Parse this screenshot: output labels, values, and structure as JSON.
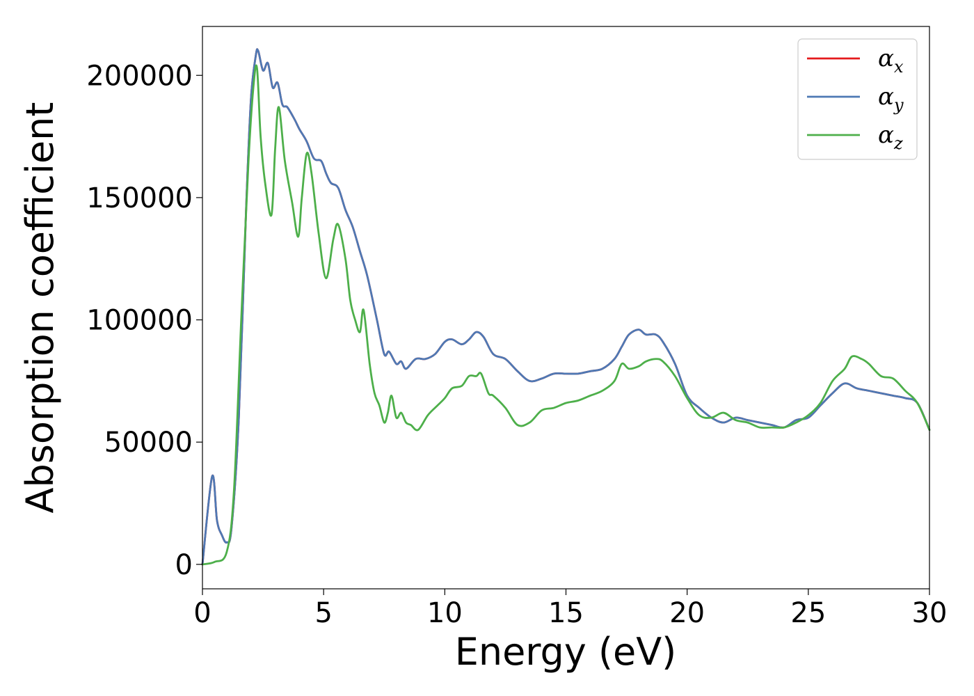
{
  "chart_data": {
    "type": "line",
    "title": "",
    "xlabel": "Energy (eV)",
    "ylabel": "Absorption coefficient",
    "xlim": [
      0,
      30
    ],
    "ylim": [
      -10000,
      220000
    ],
    "xticks": [
      0,
      5,
      10,
      15,
      20,
      25,
      30
    ],
    "yticks": [
      0,
      50000,
      100000,
      150000,
      200000
    ],
    "grid": false,
    "legend_position": "top-right",
    "series": [
      {
        "name_base": "α",
        "name_sub": "x",
        "color": "#e41a1c",
        "x": [
          0,
          0.4,
          0.6,
          0.8,
          1.0,
          1.2,
          1.5,
          1.8,
          2.0,
          2.2,
          2.3,
          2.5,
          2.7,
          2.9,
          3.1,
          3.3,
          3.5,
          3.8,
          4.0,
          4.3,
          4.6,
          4.9,
          5.1,
          5.3,
          5.6,
          5.9,
          6.2,
          6.5,
          6.8,
          7.2,
          7.5,
          7.7,
          8.0,
          8.2,
          8.4,
          8.8,
          9.2,
          9.6,
          10.0,
          10.3,
          10.7,
          11.0,
          11.3,
          11.6,
          12.0,
          12.5,
          13.0,
          13.5,
          14.0,
          14.5,
          15.0,
          15.5,
          16.0,
          16.5,
          17.0,
          17.3,
          17.6,
          18.0,
          18.3,
          18.7,
          19.0,
          19.5,
          20.0,
          20.5,
          21.0,
          21.5,
          22.0,
          22.5,
          23.0,
          23.5,
          24.0,
          24.5,
          25.0,
          25.5,
          26.0,
          26.5,
          27.0,
          27.5,
          28.0,
          28.5,
          29.0,
          29.5,
          30.0
        ],
        "y": [
          0,
          36000,
          18000,
          12000,
          9000,
          15000,
          60000,
          145000,
          190000,
          208000,
          210000,
          202000,
          205000,
          195000,
          197000,
          188000,
          187000,
          182000,
          178000,
          173000,
          166000,
          165000,
          160000,
          156000,
          154000,
          145000,
          138000,
          128000,
          118000,
          100000,
          86000,
          87000,
          82000,
          83000,
          80000,
          84000,
          84000,
          86000,
          91000,
          92000,
          90000,
          92000,
          95000,
          93000,
          86000,
          84000,
          79000,
          75000,
          76000,
          78000,
          78000,
          78000,
          79000,
          80000,
          84000,
          89000,
          94000,
          96000,
          94000,
          94000,
          91000,
          82000,
          69000,
          64000,
          60000,
          58000,
          60000,
          59000,
          58000,
          57000,
          56000,
          59000,
          60000,
          65000,
          70000,
          74000,
          72000,
          71000,
          70000,
          69000,
          68000,
          66000,
          55000
        ]
      },
      {
        "name_base": "α",
        "name_sub": "y",
        "color": "#4e79b4",
        "x": [
          0,
          0.4,
          0.6,
          0.8,
          1.0,
          1.2,
          1.5,
          1.8,
          2.0,
          2.2,
          2.3,
          2.5,
          2.7,
          2.9,
          3.1,
          3.3,
          3.5,
          3.8,
          4.0,
          4.3,
          4.6,
          4.9,
          5.1,
          5.3,
          5.6,
          5.9,
          6.2,
          6.5,
          6.8,
          7.2,
          7.5,
          7.7,
          8.0,
          8.2,
          8.4,
          8.8,
          9.2,
          9.6,
          10.0,
          10.3,
          10.7,
          11.0,
          11.3,
          11.6,
          12.0,
          12.5,
          13.0,
          13.5,
          14.0,
          14.5,
          15.0,
          15.5,
          16.0,
          16.5,
          17.0,
          17.3,
          17.6,
          18.0,
          18.3,
          18.7,
          19.0,
          19.5,
          20.0,
          20.5,
          21.0,
          21.5,
          22.0,
          22.5,
          23.0,
          23.5,
          24.0,
          24.5,
          25.0,
          25.5,
          26.0,
          26.5,
          27.0,
          27.5,
          28.0,
          28.5,
          29.0,
          29.5,
          30.0
        ],
        "y": [
          0,
          36000,
          18000,
          12000,
          9000,
          15000,
          60000,
          145000,
          190000,
          208000,
          210000,
          202000,
          205000,
          195000,
          197000,
          188000,
          187000,
          182000,
          178000,
          173000,
          166000,
          165000,
          160000,
          156000,
          154000,
          145000,
          138000,
          128000,
          118000,
          100000,
          86000,
          87000,
          82000,
          83000,
          80000,
          84000,
          84000,
          86000,
          91000,
          92000,
          90000,
          92000,
          95000,
          93000,
          86000,
          84000,
          79000,
          75000,
          76000,
          78000,
          78000,
          78000,
          79000,
          80000,
          84000,
          89000,
          94000,
          96000,
          94000,
          94000,
          91000,
          82000,
          69000,
          64000,
          60000,
          58000,
          60000,
          59000,
          58000,
          57000,
          56000,
          59000,
          60000,
          65000,
          70000,
          74000,
          72000,
          71000,
          70000,
          69000,
          68000,
          66000,
          55000
        ]
      },
      {
        "name_base": "α",
        "name_sub": "z",
        "color": "#4daf4a",
        "x": [
          0,
          0.5,
          1.0,
          1.3,
          1.6,
          1.9,
          2.1,
          2.25,
          2.4,
          2.6,
          2.85,
          3.0,
          3.15,
          3.4,
          3.7,
          3.95,
          4.1,
          4.3,
          4.5,
          4.8,
          5.1,
          5.4,
          5.6,
          5.9,
          6.1,
          6.3,
          6.5,
          6.65,
          6.9,
          7.1,
          7.3,
          7.5,
          7.65,
          7.8,
          8.0,
          8.2,
          8.4,
          8.6,
          8.9,
          9.3,
          9.7,
          10.0,
          10.3,
          10.7,
          11.0,
          11.3,
          11.5,
          11.8,
          12.0,
          12.5,
          13.0,
          13.5,
          14.0,
          14.5,
          15.0,
          15.5,
          16.0,
          16.5,
          17.0,
          17.3,
          17.6,
          18.0,
          18.3,
          18.7,
          19.0,
          19.5,
          20.0,
          20.5,
          21.0,
          21.5,
          22.0,
          22.5,
          23.0,
          23.5,
          24.0,
          24.5,
          25.0,
          25.5,
          26.0,
          26.5,
          26.8,
          27.2,
          27.5,
          28.0,
          28.5,
          29.0,
          29.5,
          30.0
        ],
        "y": [
          0,
          1000,
          5000,
          30000,
          100000,
          165000,
          195000,
          203000,
          175000,
          155000,
          143000,
          170000,
          187000,
          165000,
          148000,
          134000,
          150000,
          168000,
          160000,
          135000,
          117000,
          133000,
          139000,
          125000,
          108000,
          100000,
          95000,
          104000,
          82000,
          70000,
          65000,
          58000,
          62000,
          69000,
          60000,
          62000,
          58000,
          57000,
          55000,
          61000,
          65000,
          68000,
          72000,
          73000,
          77000,
          77000,
          78000,
          70000,
          69000,
          64000,
          57000,
          58000,
          63000,
          64000,
          66000,
          67000,
          69000,
          71000,
          75000,
          82000,
          80000,
          81000,
          83000,
          84000,
          83000,
          77000,
          68000,
          61000,
          60000,
          62000,
          59000,
          58000,
          56000,
          56000,
          56000,
          58000,
          61000,
          66000,
          75000,
          80000,
          85000,
          84000,
          82000,
          77000,
          76000,
          71000,
          66000,
          55000
        ]
      }
    ]
  }
}
